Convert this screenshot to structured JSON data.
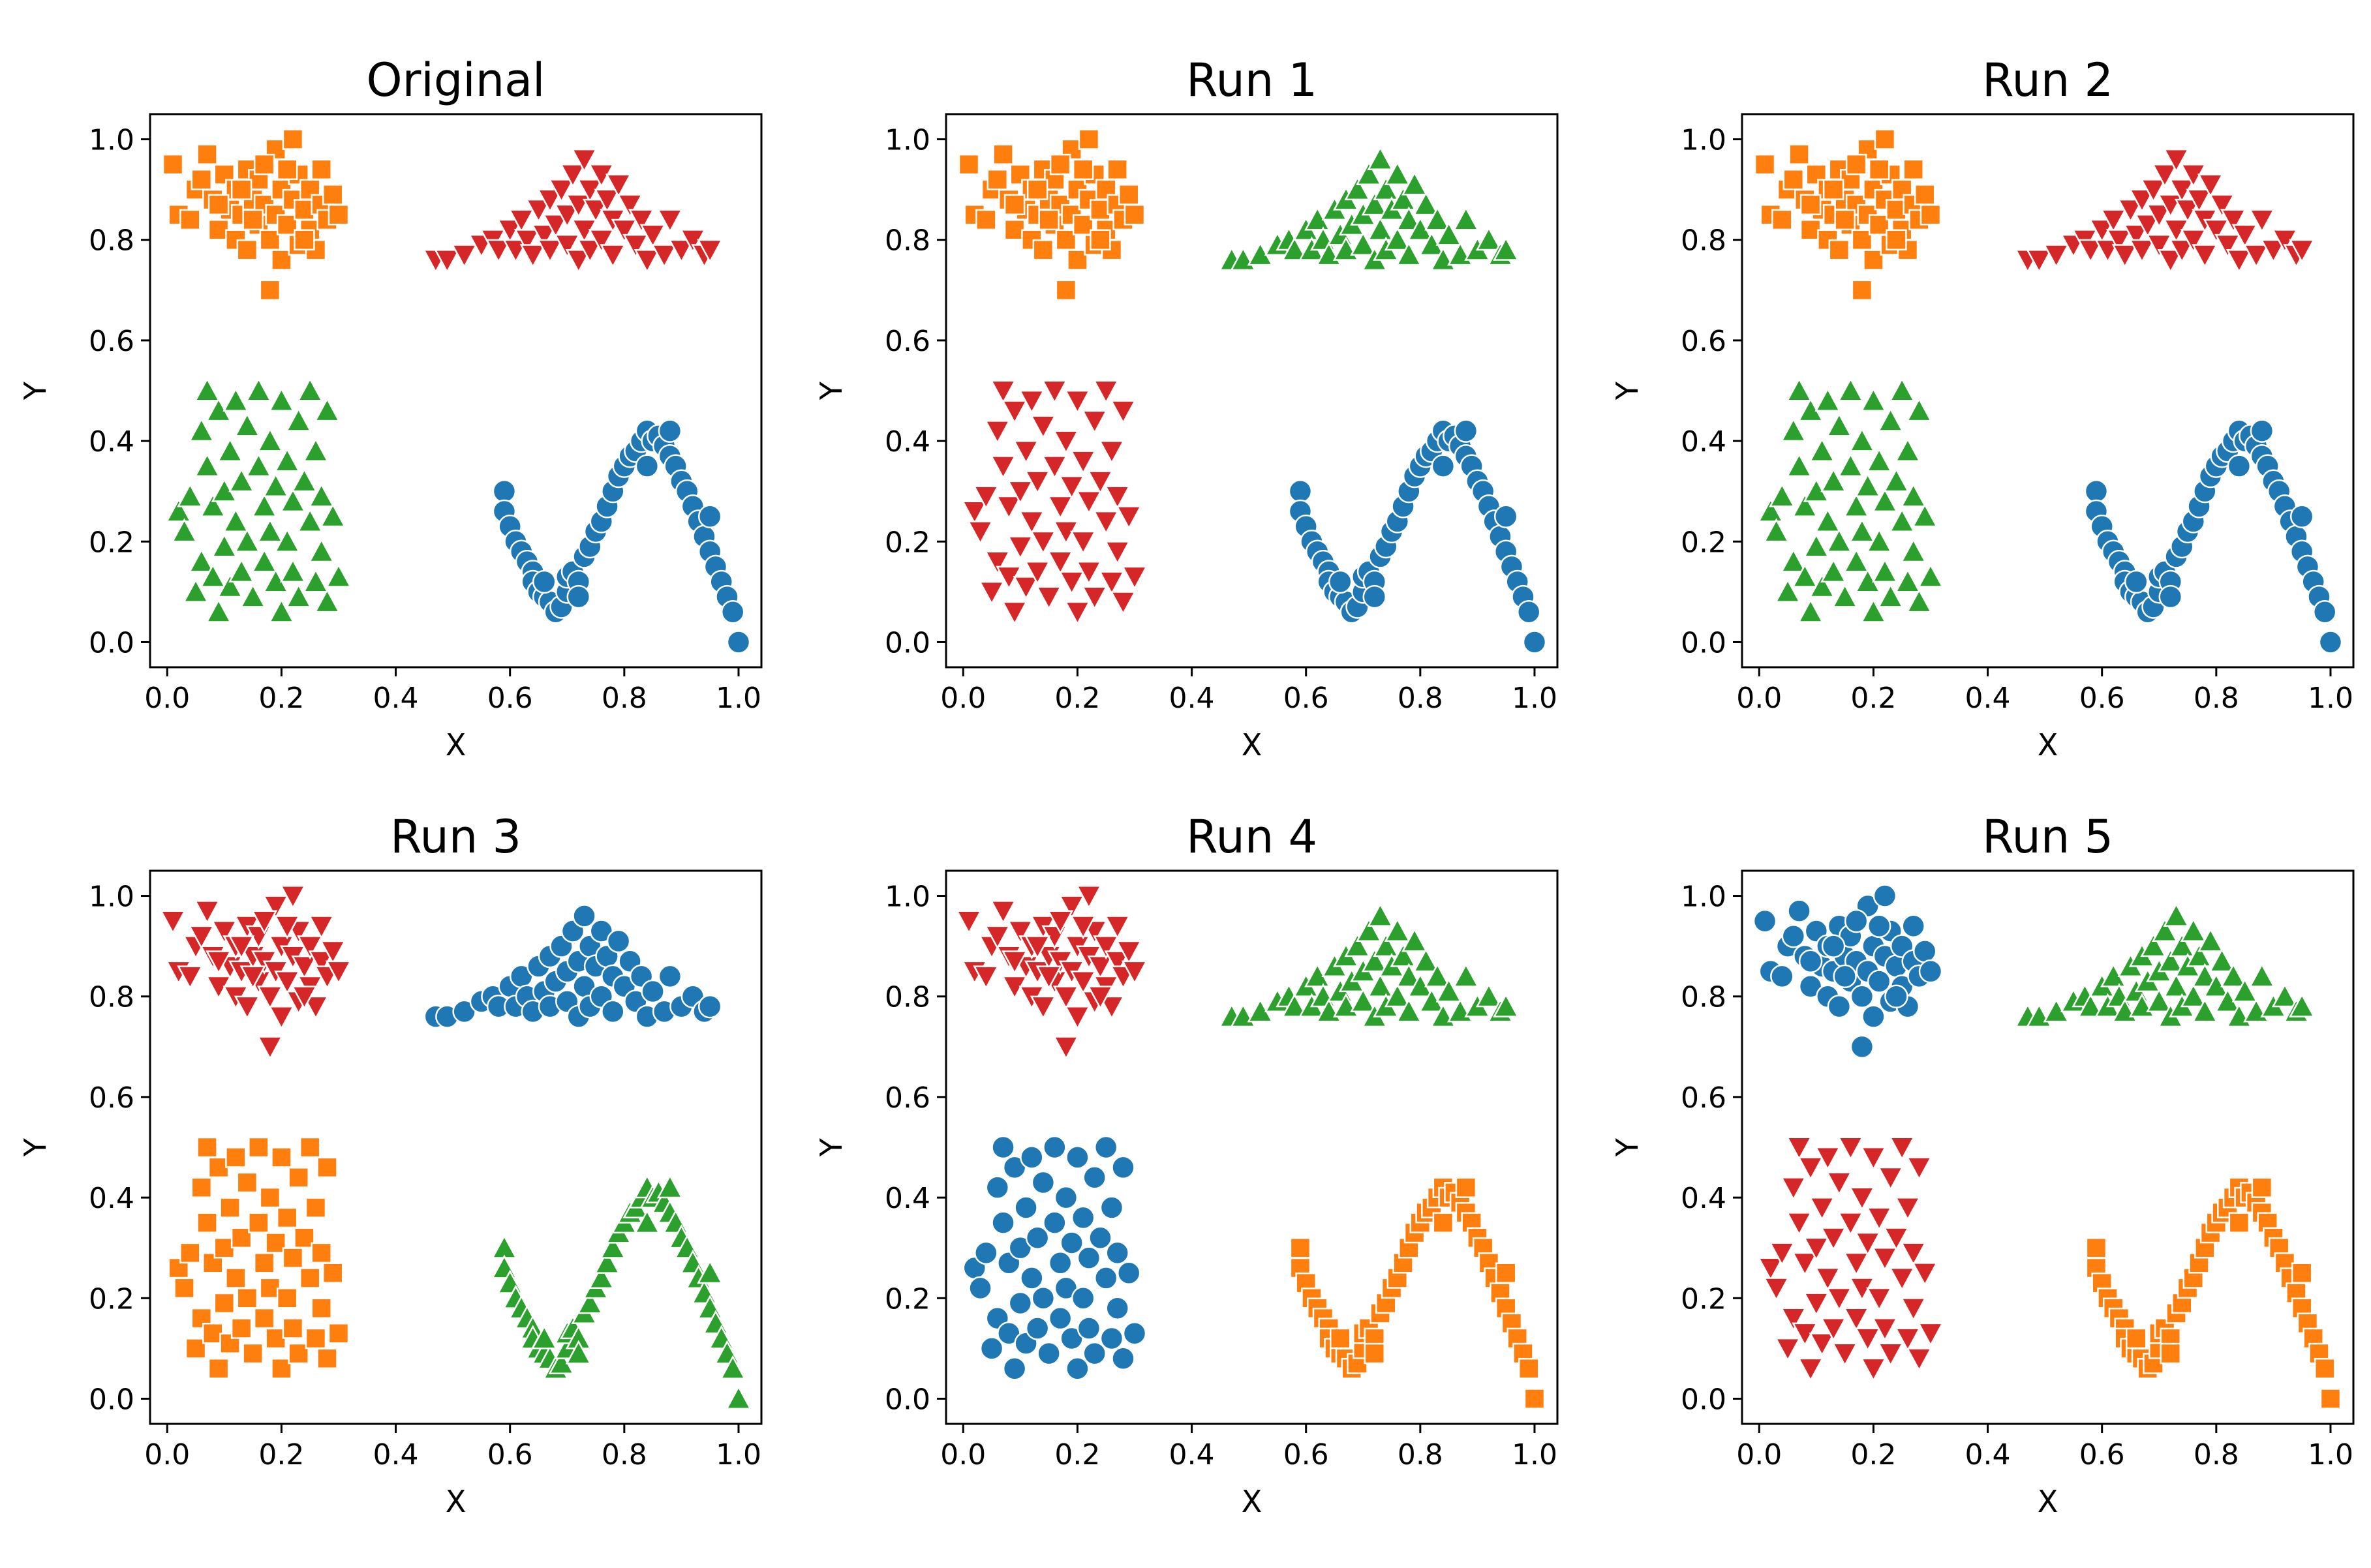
{
  "figure": {
    "layout": "2 rows x 3 columns",
    "colors": {
      "blue": "#1f77b4",
      "orange": "#ff7f0e",
      "green": "#2ca02c",
      "red": "#d62728"
    }
  },
  "chart_data": [
    {
      "type": "scatter",
      "title": "Original",
      "xlabel": "X",
      "ylabel": "Y",
      "xlim": [
        -0.03,
        1.04
      ],
      "ylim": [
        -0.05,
        1.05
      ],
      "xticks": [
        "0.0",
        "0.2",
        "0.4",
        "0.6",
        "0.8",
        "1.0"
      ],
      "yticks": [
        "0.0",
        "0.2",
        "0.4",
        "0.6",
        "0.8",
        "1.0"
      ],
      "clusters": {
        "top_left": {
          "color": "orange",
          "marker": "square"
        },
        "top_right": {
          "color": "red",
          "marker": "triangle-down"
        },
        "bottom_left": {
          "color": "green",
          "marker": "triangle-up"
        },
        "bottom_right": {
          "color": "blue",
          "marker": "circle"
        }
      }
    },
    {
      "type": "scatter",
      "title": "Run 1",
      "xlabel": "X",
      "ylabel": "Y",
      "xlim": [
        -0.03,
        1.04
      ],
      "ylim": [
        -0.05,
        1.05
      ],
      "xticks": [
        "0.0",
        "0.2",
        "0.4",
        "0.6",
        "0.8",
        "1.0"
      ],
      "yticks": [
        "0.0",
        "0.2",
        "0.4",
        "0.6",
        "0.8",
        "1.0"
      ],
      "clusters": {
        "top_left": {
          "color": "orange",
          "marker": "square"
        },
        "top_right": {
          "color": "green",
          "marker": "triangle-up"
        },
        "bottom_left": {
          "color": "red",
          "marker": "triangle-down"
        },
        "bottom_right": {
          "color": "blue",
          "marker": "circle"
        }
      }
    },
    {
      "type": "scatter",
      "title": "Run 2",
      "xlabel": "X",
      "ylabel": "Y",
      "xlim": [
        -0.03,
        1.04
      ],
      "ylim": [
        -0.05,
        1.05
      ],
      "xticks": [
        "0.0",
        "0.2",
        "0.4",
        "0.6",
        "0.8",
        "1.0"
      ],
      "yticks": [
        "0.0",
        "0.2",
        "0.4",
        "0.6",
        "0.8",
        "1.0"
      ],
      "clusters": {
        "top_left": {
          "color": "orange",
          "marker": "square"
        },
        "top_right": {
          "color": "red",
          "marker": "triangle-down"
        },
        "bottom_left": {
          "color": "green",
          "marker": "triangle-up"
        },
        "bottom_right": {
          "color": "blue",
          "marker": "circle"
        }
      }
    },
    {
      "type": "scatter",
      "title": "Run 3",
      "xlabel": "X",
      "ylabel": "Y",
      "xlim": [
        -0.03,
        1.04
      ],
      "ylim": [
        -0.05,
        1.05
      ],
      "xticks": [
        "0.0",
        "0.2",
        "0.4",
        "0.6",
        "0.8",
        "1.0"
      ],
      "yticks": [
        "0.0",
        "0.2",
        "0.4",
        "0.6",
        "0.8",
        "1.0"
      ],
      "clusters": {
        "top_left": {
          "color": "red",
          "marker": "triangle-down"
        },
        "top_right": {
          "color": "blue",
          "marker": "circle"
        },
        "bottom_left": {
          "color": "orange",
          "marker": "square"
        },
        "bottom_right": {
          "color": "green",
          "marker": "triangle-up"
        }
      }
    },
    {
      "type": "scatter",
      "title": "Run 4",
      "xlabel": "X",
      "ylabel": "Y",
      "xlim": [
        -0.03,
        1.04
      ],
      "ylim": [
        -0.05,
        1.05
      ],
      "xticks": [
        "0.0",
        "0.2",
        "0.4",
        "0.6",
        "0.8",
        "1.0"
      ],
      "yticks": [
        "0.0",
        "0.2",
        "0.4",
        "0.6",
        "0.8",
        "1.0"
      ],
      "clusters": {
        "top_left": {
          "color": "red",
          "marker": "triangle-down"
        },
        "top_right": {
          "color": "green",
          "marker": "triangle-up"
        },
        "bottom_left": {
          "color": "blue",
          "marker": "circle"
        },
        "bottom_right": {
          "color": "orange",
          "marker": "square"
        }
      }
    },
    {
      "type": "scatter",
      "title": "Run 5",
      "xlabel": "X",
      "ylabel": "Y",
      "xlim": [
        -0.03,
        1.04
      ],
      "ylim": [
        -0.05,
        1.05
      ],
      "xticks": [
        "0.0",
        "0.2",
        "0.4",
        "0.6",
        "0.8",
        "1.0"
      ],
      "yticks": [
        "0.0",
        "0.2",
        "0.4",
        "0.6",
        "0.8",
        "1.0"
      ],
      "clusters": {
        "top_left": {
          "color": "blue",
          "marker": "circle"
        },
        "top_right": {
          "color": "green",
          "marker": "triangle-up"
        },
        "bottom_left": {
          "color": "red",
          "marker": "triangle-down"
        },
        "bottom_right": {
          "color": "orange",
          "marker": "square"
        }
      }
    }
  ],
  "cluster_points": {
    "top_left": [
      [
        0.01,
        0.95
      ],
      [
        0.02,
        0.85
      ],
      [
        0.05,
        0.9
      ],
      [
        0.07,
        0.97
      ],
      [
        0.08,
        0.88
      ],
      [
        0.09,
        0.82
      ],
      [
        0.1,
        0.93
      ],
      [
        0.11,
        0.86
      ],
      [
        0.12,
        0.8
      ],
      [
        0.12,
        0.9
      ],
      [
        0.13,
        0.85
      ],
      [
        0.14,
        0.94
      ],
      [
        0.14,
        0.78
      ],
      [
        0.15,
        0.88
      ],
      [
        0.16,
        0.83
      ],
      [
        0.16,
        0.92
      ],
      [
        0.17,
        0.87
      ],
      [
        0.18,
        0.7
      ],
      [
        0.18,
        0.8
      ],
      [
        0.19,
        0.98
      ],
      [
        0.19,
        0.85
      ],
      [
        0.2,
        0.9
      ],
      [
        0.2,
        0.76
      ],
      [
        0.21,
        0.83
      ],
      [
        0.22,
        1.0
      ],
      [
        0.22,
        0.88
      ],
      [
        0.23,
        0.79
      ],
      [
        0.23,
        0.93
      ],
      [
        0.24,
        0.86
      ],
      [
        0.25,
        0.82
      ],
      [
        0.25,
        0.9
      ],
      [
        0.26,
        0.78
      ],
      [
        0.27,
        0.87
      ],
      [
        0.27,
        0.94
      ],
      [
        0.28,
        0.84
      ],
      [
        0.29,
        0.89
      ],
      [
        0.3,
        0.85
      ],
      [
        0.04,
        0.84
      ],
      [
        0.06,
        0.92
      ],
      [
        0.09,
        0.87
      ],
      [
        0.13,
        0.9
      ],
      [
        0.17,
        0.95
      ],
      [
        0.21,
        0.94
      ],
      [
        0.24,
        0.8
      ],
      [
        0.15,
        0.84
      ]
    ],
    "top_right": [
      [
        0.47,
        0.76
      ],
      [
        0.49,
        0.76
      ],
      [
        0.52,
        0.77
      ],
      [
        0.55,
        0.79
      ],
      [
        0.57,
        0.8
      ],
      [
        0.58,
        0.78
      ],
      [
        0.6,
        0.82
      ],
      [
        0.61,
        0.78
      ],
      [
        0.62,
        0.84
      ],
      [
        0.63,
        0.8
      ],
      [
        0.64,
        0.77
      ],
      [
        0.65,
        0.86
      ],
      [
        0.66,
        0.81
      ],
      [
        0.67,
        0.88
      ],
      [
        0.67,
        0.78
      ],
      [
        0.68,
        0.83
      ],
      [
        0.69,
        0.9
      ],
      [
        0.7,
        0.85
      ],
      [
        0.7,
        0.79
      ],
      [
        0.71,
        0.93
      ],
      [
        0.72,
        0.87
      ],
      [
        0.72,
        0.76
      ],
      [
        0.73,
        0.96
      ],
      [
        0.73,
        0.82
      ],
      [
        0.74,
        0.9
      ],
      [
        0.74,
        0.78
      ],
      [
        0.75,
        0.86
      ],
      [
        0.76,
        0.93
      ],
      [
        0.76,
        0.8
      ],
      [
        0.77,
        0.88
      ],
      [
        0.78,
        0.84
      ],
      [
        0.78,
        0.77
      ],
      [
        0.79,
        0.91
      ],
      [
        0.8,
        0.82
      ],
      [
        0.81,
        0.87
      ],
      [
        0.82,
        0.79
      ],
      [
        0.83,
        0.84
      ],
      [
        0.84,
        0.76
      ],
      [
        0.85,
        0.81
      ],
      [
        0.87,
        0.77
      ],
      [
        0.88,
        0.84
      ],
      [
        0.9,
        0.78
      ],
      [
        0.92,
        0.8
      ],
      [
        0.94,
        0.77
      ],
      [
        0.95,
        0.78
      ]
    ],
    "bottom_left": [
      [
        0.02,
        0.26
      ],
      [
        0.03,
        0.22
      ],
      [
        0.04,
        0.29
      ],
      [
        0.05,
        0.1
      ],
      [
        0.06,
        0.42
      ],
      [
        0.06,
        0.16
      ],
      [
        0.07,
        0.35
      ],
      [
        0.07,
        0.5
      ],
      [
        0.08,
        0.27
      ],
      [
        0.08,
        0.13
      ],
      [
        0.09,
        0.46
      ],
      [
        0.09,
        0.06
      ],
      [
        0.1,
        0.3
      ],
      [
        0.1,
        0.19
      ],
      [
        0.11,
        0.38
      ],
      [
        0.11,
        0.11
      ],
      [
        0.12,
        0.48
      ],
      [
        0.12,
        0.24
      ],
      [
        0.13,
        0.32
      ],
      [
        0.13,
        0.14
      ],
      [
        0.14,
        0.43
      ],
      [
        0.14,
        0.2
      ],
      [
        0.15,
        0.09
      ],
      [
        0.16,
        0.35
      ],
      [
        0.16,
        0.5
      ],
      [
        0.17,
        0.27
      ],
      [
        0.17,
        0.16
      ],
      [
        0.18,
        0.4
      ],
      [
        0.18,
        0.22
      ],
      [
        0.19,
        0.31
      ],
      [
        0.19,
        0.12
      ],
      [
        0.2,
        0.48
      ],
      [
        0.2,
        0.06
      ],
      [
        0.21,
        0.36
      ],
      [
        0.21,
        0.2
      ],
      [
        0.22,
        0.28
      ],
      [
        0.22,
        0.14
      ],
      [
        0.23,
        0.44
      ],
      [
        0.23,
        0.09
      ],
      [
        0.24,
        0.32
      ],
      [
        0.25,
        0.5
      ],
      [
        0.25,
        0.24
      ],
      [
        0.26,
        0.38
      ],
      [
        0.26,
        0.12
      ],
      [
        0.27,
        0.29
      ],
      [
        0.27,
        0.18
      ],
      [
        0.28,
        0.46
      ],
      [
        0.28,
        0.08
      ],
      [
        0.29,
        0.25
      ],
      [
        0.3,
        0.13
      ]
    ],
    "bottom_right": [
      [
        0.59,
        0.3
      ],
      [
        0.59,
        0.26
      ],
      [
        0.6,
        0.23
      ],
      [
        0.61,
        0.2
      ],
      [
        0.62,
        0.18
      ],
      [
        0.63,
        0.16
      ],
      [
        0.64,
        0.14
      ],
      [
        0.64,
        0.12
      ],
      [
        0.65,
        0.1
      ],
      [
        0.66,
        0.09
      ],
      [
        0.67,
        0.08
      ],
      [
        0.68,
        0.06
      ],
      [
        0.69,
        0.07
      ],
      [
        0.7,
        0.1
      ],
      [
        0.7,
        0.13
      ],
      [
        0.71,
        0.14
      ],
      [
        0.72,
        0.12
      ],
      [
        0.73,
        0.17
      ],
      [
        0.74,
        0.19
      ],
      [
        0.75,
        0.22
      ],
      [
        0.76,
        0.24
      ],
      [
        0.77,
        0.27
      ],
      [
        0.78,
        0.3
      ],
      [
        0.79,
        0.33
      ],
      [
        0.8,
        0.35
      ],
      [
        0.81,
        0.37
      ],
      [
        0.82,
        0.38
      ],
      [
        0.83,
        0.4
      ],
      [
        0.84,
        0.42
      ],
      [
        0.85,
        0.4
      ],
      [
        0.86,
        0.41
      ],
      [
        0.87,
        0.39
      ],
      [
        0.88,
        0.37
      ],
      [
        0.89,
        0.35
      ],
      [
        0.9,
        0.32
      ],
      [
        0.91,
        0.3
      ],
      [
        0.92,
        0.27
      ],
      [
        0.93,
        0.24
      ],
      [
        0.94,
        0.21
      ],
      [
        0.95,
        0.18
      ],
      [
        0.96,
        0.15
      ],
      [
        0.97,
        0.12
      ],
      [
        0.98,
        0.09
      ],
      [
        0.99,
        0.06
      ],
      [
        1.0,
        0.0
      ],
      [
        0.84,
        0.35
      ],
      [
        0.66,
        0.12
      ],
      [
        0.72,
        0.09
      ],
      [
        0.88,
        0.42
      ],
      [
        0.95,
        0.25
      ]
    ]
  }
}
